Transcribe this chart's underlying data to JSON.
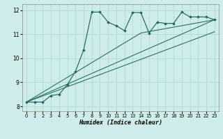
{
  "bg_color": "#cdecea",
  "grid_color": "#aed4d1",
  "line_color": "#1c6b60",
  "xlabel": "Humidex (Indice chaleur)",
  "xlim": [
    -0.5,
    23.5
  ],
  "ylim": [
    7.8,
    12.25
  ],
  "yticks": [
    8,
    9,
    10,
    11,
    12
  ],
  "xticks": [
    0,
    1,
    2,
    3,
    4,
    5,
    6,
    7,
    8,
    9,
    10,
    11,
    12,
    13,
    14,
    15,
    16,
    17,
    18,
    19,
    20,
    21,
    22,
    23
  ],
  "series_main_x": [
    0,
    1,
    2,
    3,
    4,
    5,
    6,
    7,
    8,
    9,
    10,
    11,
    12,
    13,
    14,
    15,
    16,
    17,
    18,
    19,
    20,
    21,
    22,
    23
  ],
  "series_main_y": [
    8.18,
    8.18,
    8.18,
    8.45,
    8.5,
    8.9,
    9.45,
    10.35,
    11.92,
    11.92,
    11.5,
    11.35,
    11.15,
    11.9,
    11.9,
    11.05,
    11.5,
    11.45,
    11.45,
    11.92,
    11.72,
    11.72,
    11.72,
    11.6
  ],
  "line1_x": [
    0,
    14,
    23
  ],
  "line1_y": [
    8.18,
    11.05,
    11.6
  ],
  "line2_x": [
    0,
    23
  ],
  "line2_y": [
    8.18,
    11.6
  ],
  "line3_x": [
    0,
    23
  ],
  "line3_y": [
    8.18,
    11.1
  ]
}
